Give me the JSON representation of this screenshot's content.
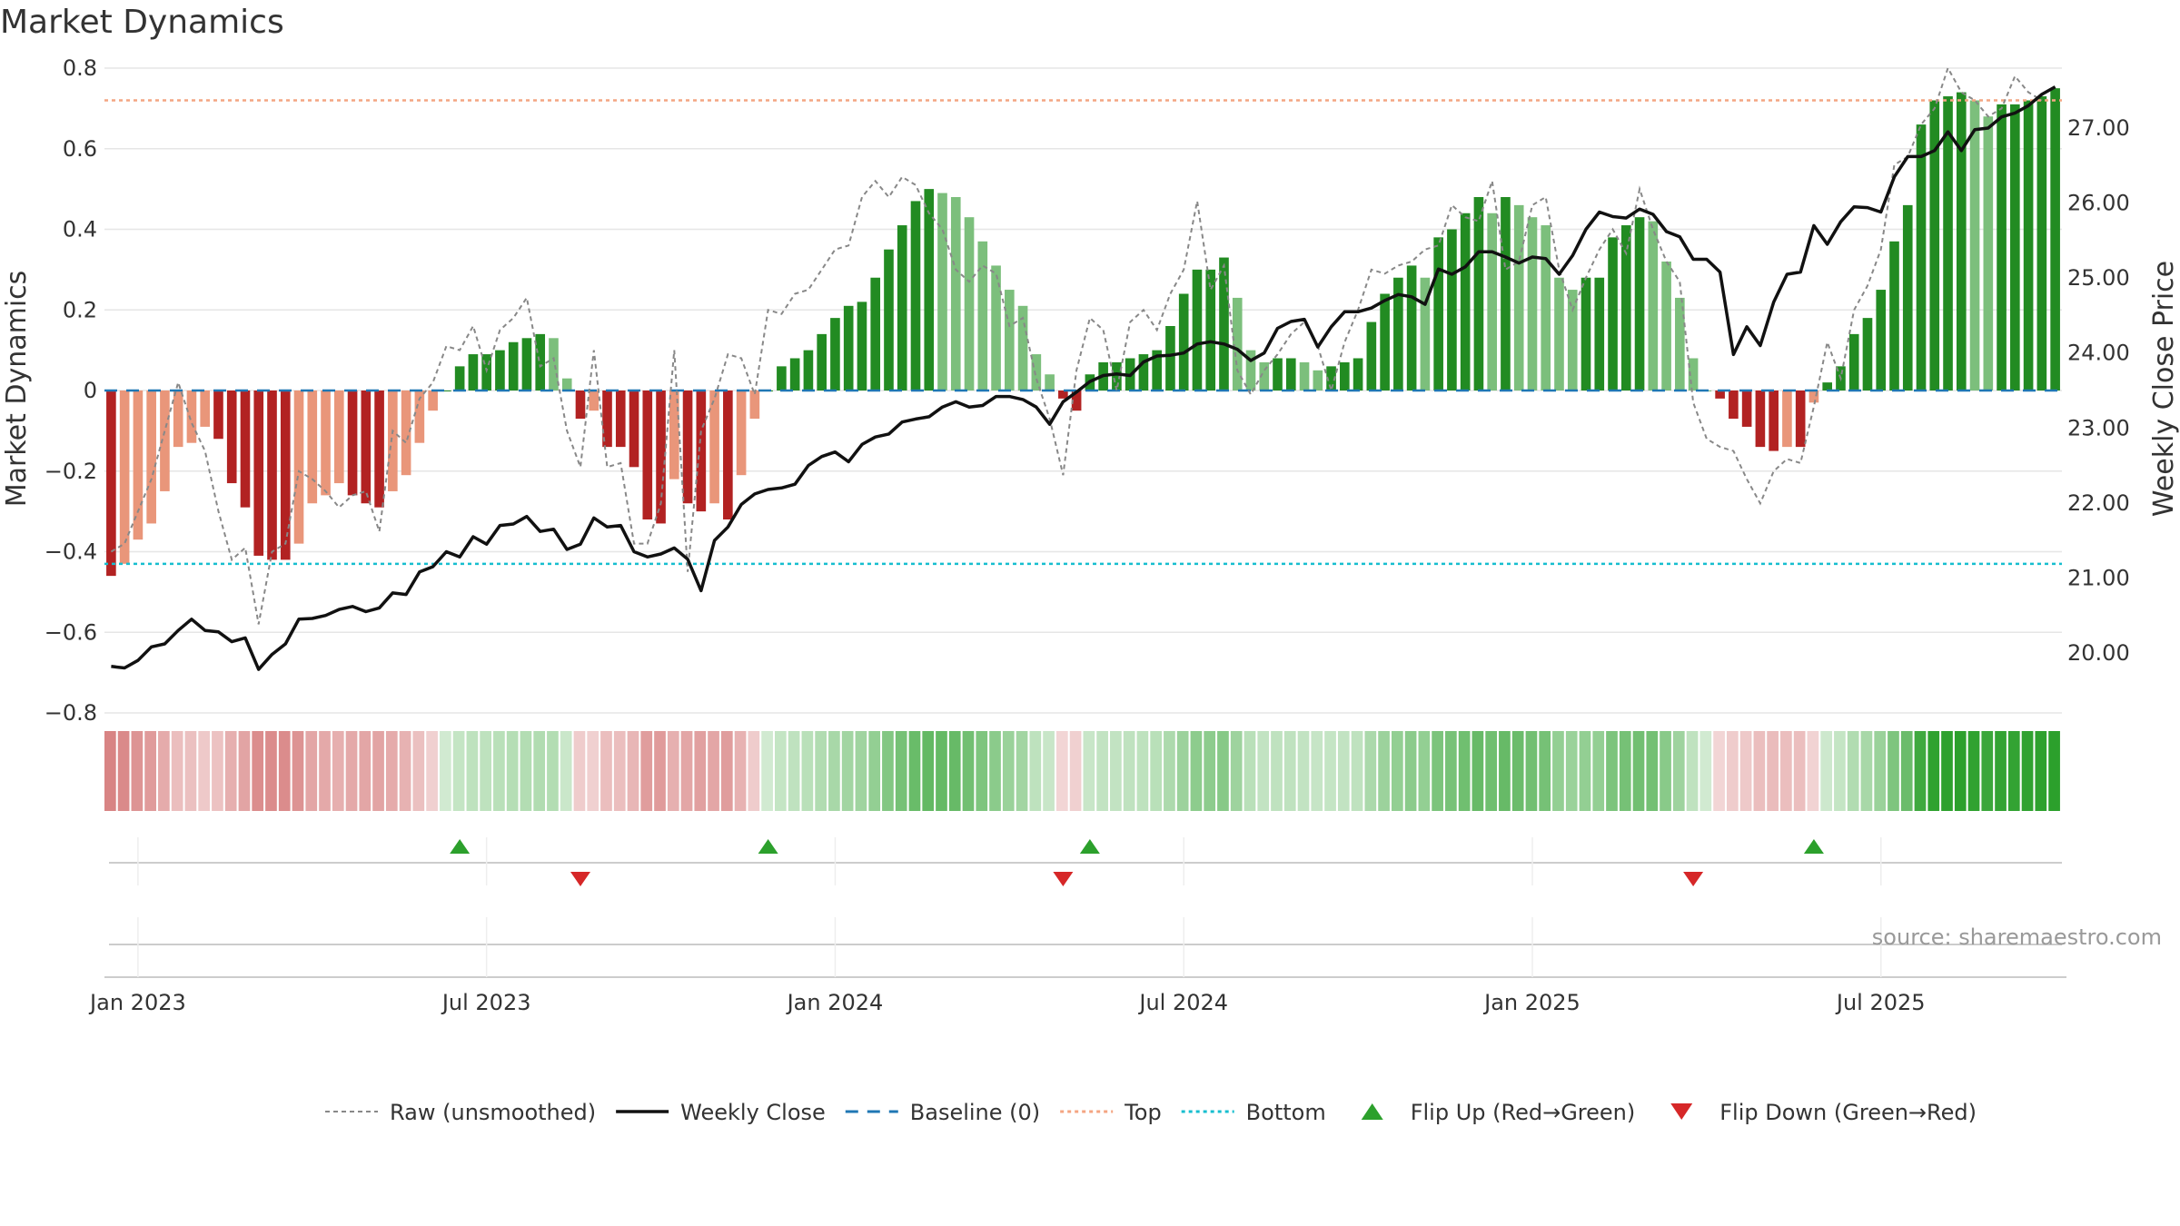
{
  "title": "Market Dynamics",
  "source": "source: sharemaestro.com",
  "colors": {
    "strong_green": "#228B22",
    "light_green": "#7CBF7C",
    "strong_red": "#B22222",
    "light_red": "#E9967A",
    "weekly_close": "#111111",
    "raw": "#888888",
    "baseline": "#1F77B4",
    "top": "#F4A582",
    "bottom": "#17BECF",
    "flip_up": "#2CA02C",
    "flip_down": "#D62728"
  },
  "chart_data": {
    "type": "bar",
    "title": "Market Dynamics",
    "ylabel": "Market Dynamics",
    "y2label": "Weekly Close Price",
    "ylim": [
      -0.8,
      0.8
    ],
    "y2lim": [
      19.2,
      27.8
    ],
    "yticks": [
      "0.8",
      "0.6",
      "0.4",
      "0.2",
      "0",
      "−0.2",
      "−0.4",
      "−0.6",
      "−0.8"
    ],
    "yticks_values": [
      0.8,
      0.6,
      0.4,
      0.2,
      0,
      -0.2,
      -0.4,
      -0.6,
      -0.8
    ],
    "y2ticks": [
      "27.00",
      "26.00",
      "25.00",
      "24.00",
      "23.00",
      "22.00",
      "21.00",
      "20.00"
    ],
    "y2ticks_values": [
      27,
      26,
      25,
      24,
      23,
      22,
      21,
      20
    ],
    "xticks": [
      "Jan 2023",
      "Jul 2023",
      "Jan 2024",
      "Jul 2024",
      "Jan 2025",
      "Jul 2025"
    ],
    "xticks_week_index": [
      2,
      28,
      54,
      80,
      106,
      132
    ],
    "top_line": 0.72,
    "bottom_line": -0.43,
    "baseline": 0,
    "grid": true,
    "legend_position": "bottom",
    "series": [
      {
        "name": "Market Dynamics",
        "kind": "bar",
        "values": [
          -0.46,
          -0.43,
          -0.37,
          -0.33,
          -0.25,
          -0.14,
          -0.13,
          -0.09,
          -0.12,
          -0.23,
          -0.29,
          -0.41,
          -0.42,
          -0.42,
          -0.38,
          -0.28,
          -0.26,
          -0.23,
          -0.26,
          -0.28,
          -0.29,
          -0.25,
          -0.21,
          -0.13,
          -0.05,
          0.0,
          0.06,
          0.09,
          0.09,
          0.1,
          0.12,
          0.13,
          0.14,
          0.13,
          0.03,
          -0.07,
          -0.05,
          -0.14,
          -0.14,
          -0.19,
          -0.32,
          -0.33,
          -0.22,
          -0.28,
          -0.3,
          -0.28,
          -0.32,
          -0.21,
          -0.07,
          0.0,
          0.06,
          0.08,
          0.1,
          0.14,
          0.18,
          0.21,
          0.22,
          0.28,
          0.35,
          0.41,
          0.47,
          0.5,
          0.49,
          0.48,
          0.43,
          0.37,
          0.31,
          0.25,
          0.21,
          0.09,
          0.04,
          -0.02,
          -0.05,
          0.04,
          0.07,
          0.07,
          0.08,
          0.09,
          0.1,
          0.16,
          0.24,
          0.3,
          0.3,
          0.33,
          0.23,
          0.1,
          0.07,
          0.08,
          0.08,
          0.07,
          0.05,
          0.06,
          0.07,
          0.08,
          0.17,
          0.24,
          0.28,
          0.31,
          0.28,
          0.38,
          0.4,
          0.44,
          0.48,
          0.44,
          0.48,
          0.46,
          0.43,
          0.41,
          0.28,
          0.25,
          0.28,
          0.28,
          0.38,
          0.41,
          0.43,
          0.42,
          0.32,
          0.23,
          0.08,
          0.0,
          -0.02,
          -0.07,
          -0.09,
          -0.14,
          -0.15,
          -0.14,
          -0.14,
          -0.03,
          0.02,
          0.06,
          0.14,
          0.18,
          0.25,
          0.37,
          0.46,
          0.66,
          0.72,
          0.73,
          0.74,
          0.72,
          0.68,
          0.71,
          0.71,
          0.72,
          0.73,
          0.75
        ]
      },
      {
        "name": "Raw (unsmoothed)",
        "kind": "line",
        "values": [
          -0.4,
          -0.38,
          -0.3,
          -0.22,
          -0.1,
          0.02,
          -0.08,
          -0.15,
          -0.3,
          -0.42,
          -0.39,
          -0.58,
          -0.4,
          -0.38,
          -0.2,
          -0.22,
          -0.25,
          -0.29,
          -0.26,
          -0.25,
          -0.35,
          -0.1,
          -0.13,
          -0.02,
          0.02,
          0.11,
          0.1,
          0.16,
          0.05,
          0.15,
          0.18,
          0.23,
          0.06,
          0.08,
          -0.1,
          -0.19,
          0.1,
          -0.19,
          -0.18,
          -0.38,
          -0.38,
          -0.28,
          0.1,
          -0.45,
          -0.1,
          -0.02,
          0.09,
          0.08,
          -0.01,
          0.2,
          0.19,
          0.24,
          0.25,
          0.3,
          0.35,
          0.36,
          0.48,
          0.52,
          0.48,
          0.53,
          0.51,
          0.44,
          0.4,
          0.3,
          0.27,
          0.31,
          0.29,
          0.16,
          0.18,
          0.03,
          -0.07,
          -0.21,
          0.05,
          0.18,
          0.15,
          0.0,
          0.17,
          0.2,
          0.15,
          0.24,
          0.3,
          0.47,
          0.25,
          0.31,
          0.05,
          -0.01,
          0.05,
          0.09,
          0.14,
          0.17,
          0.11,
          0.0,
          0.12,
          0.2,
          0.3,
          0.29,
          0.31,
          0.32,
          0.35,
          0.36,
          0.46,
          0.43,
          0.42,
          0.52,
          0.3,
          0.32,
          0.46,
          0.48,
          0.3,
          0.2,
          0.28,
          0.35,
          0.4,
          0.34,
          0.5,
          0.4,
          0.32,
          0.27,
          -0.03,
          -0.12,
          -0.14,
          -0.15,
          -0.22,
          -0.28,
          -0.2,
          -0.17,
          -0.18,
          -0.04,
          0.12,
          0.03,
          0.2,
          0.26,
          0.35,
          0.56,
          0.58,
          0.66,
          0.7,
          0.8,
          0.74,
          0.72,
          0.68,
          0.7,
          0.78,
          0.74,
          0.72
        ]
      },
      {
        "name": "Weekly Close",
        "kind": "line",
        "axis": "right",
        "values": [
          19.82,
          19.8,
          19.9,
          20.08,
          20.12,
          20.3,
          20.45,
          20.3,
          20.28,
          20.15,
          20.2,
          19.78,
          19.98,
          20.12,
          20.45,
          20.46,
          20.5,
          20.58,
          20.62,
          20.55,
          20.6,
          20.8,
          20.78,
          21.08,
          21.15,
          21.35,
          21.28,
          21.55,
          21.45,
          21.7,
          21.72,
          21.82,
          21.62,
          21.65,
          21.38,
          21.45,
          21.8,
          21.68,
          21.7,
          21.35,
          21.28,
          21.32,
          21.4,
          21.25,
          20.83,
          21.5,
          21.68,
          21.98,
          22.12,
          22.18,
          22.2,
          22.25,
          22.5,
          22.62,
          22.68,
          22.55,
          22.78,
          22.88,
          22.92,
          23.08,
          23.12,
          23.15,
          23.28,
          23.35,
          23.28,
          23.3,
          23.42,
          23.42,
          23.38,
          23.28,
          23.05,
          23.35,
          23.48,
          23.62,
          23.7,
          23.72,
          23.7,
          23.88,
          23.96,
          23.97,
          24.0,
          24.12,
          24.15,
          24.12,
          24.05,
          23.9,
          24.0,
          24.33,
          24.42,
          24.45,
          24.08,
          24.35,
          24.55,
          24.55,
          24.6,
          24.7,
          24.78,
          24.75,
          24.65,
          25.12,
          25.05,
          25.15,
          25.35,
          25.35,
          25.28,
          25.2,
          25.28,
          25.26,
          25.05,
          25.3,
          25.65,
          25.88,
          25.82,
          25.8,
          25.92,
          25.85,
          25.62,
          25.55,
          25.25,
          25.25,
          25.08,
          23.98,
          24.35,
          24.1,
          24.68,
          25.05,
          25.08,
          25.7,
          25.45,
          25.75,
          25.95,
          25.94,
          25.88,
          26.35,
          26.62,
          26.62,
          26.7,
          26.95,
          26.7,
          26.98,
          27.0,
          27.15,
          27.2,
          27.3,
          27.45,
          27.55
        ]
      }
    ],
    "heat_strip": {
      "description": "",
      "labels": []
    },
    "flips": {
      "up_week_index": [
        26,
        49,
        73,
        127
      ],
      "down_week_index": [
        35,
        71,
        118
      ]
    },
    "legend": [
      {
        "label": "Raw (unsmoothed)",
        "style": "dotted-gray"
      },
      {
        "label": "Weekly Close",
        "style": "solid-black"
      },
      {
        "label": "Baseline (0)",
        "style": "dashed-blue"
      },
      {
        "label": "Top",
        "style": "dotted-orange"
      },
      {
        "label": "Bottom",
        "style": "dotted-cyan"
      },
      {
        "label": "Flip Up (Red→Green)",
        "style": "triangle-up-green"
      },
      {
        "label": "Flip Down (Green→Red)",
        "style": "triangle-down-red"
      }
    ]
  }
}
